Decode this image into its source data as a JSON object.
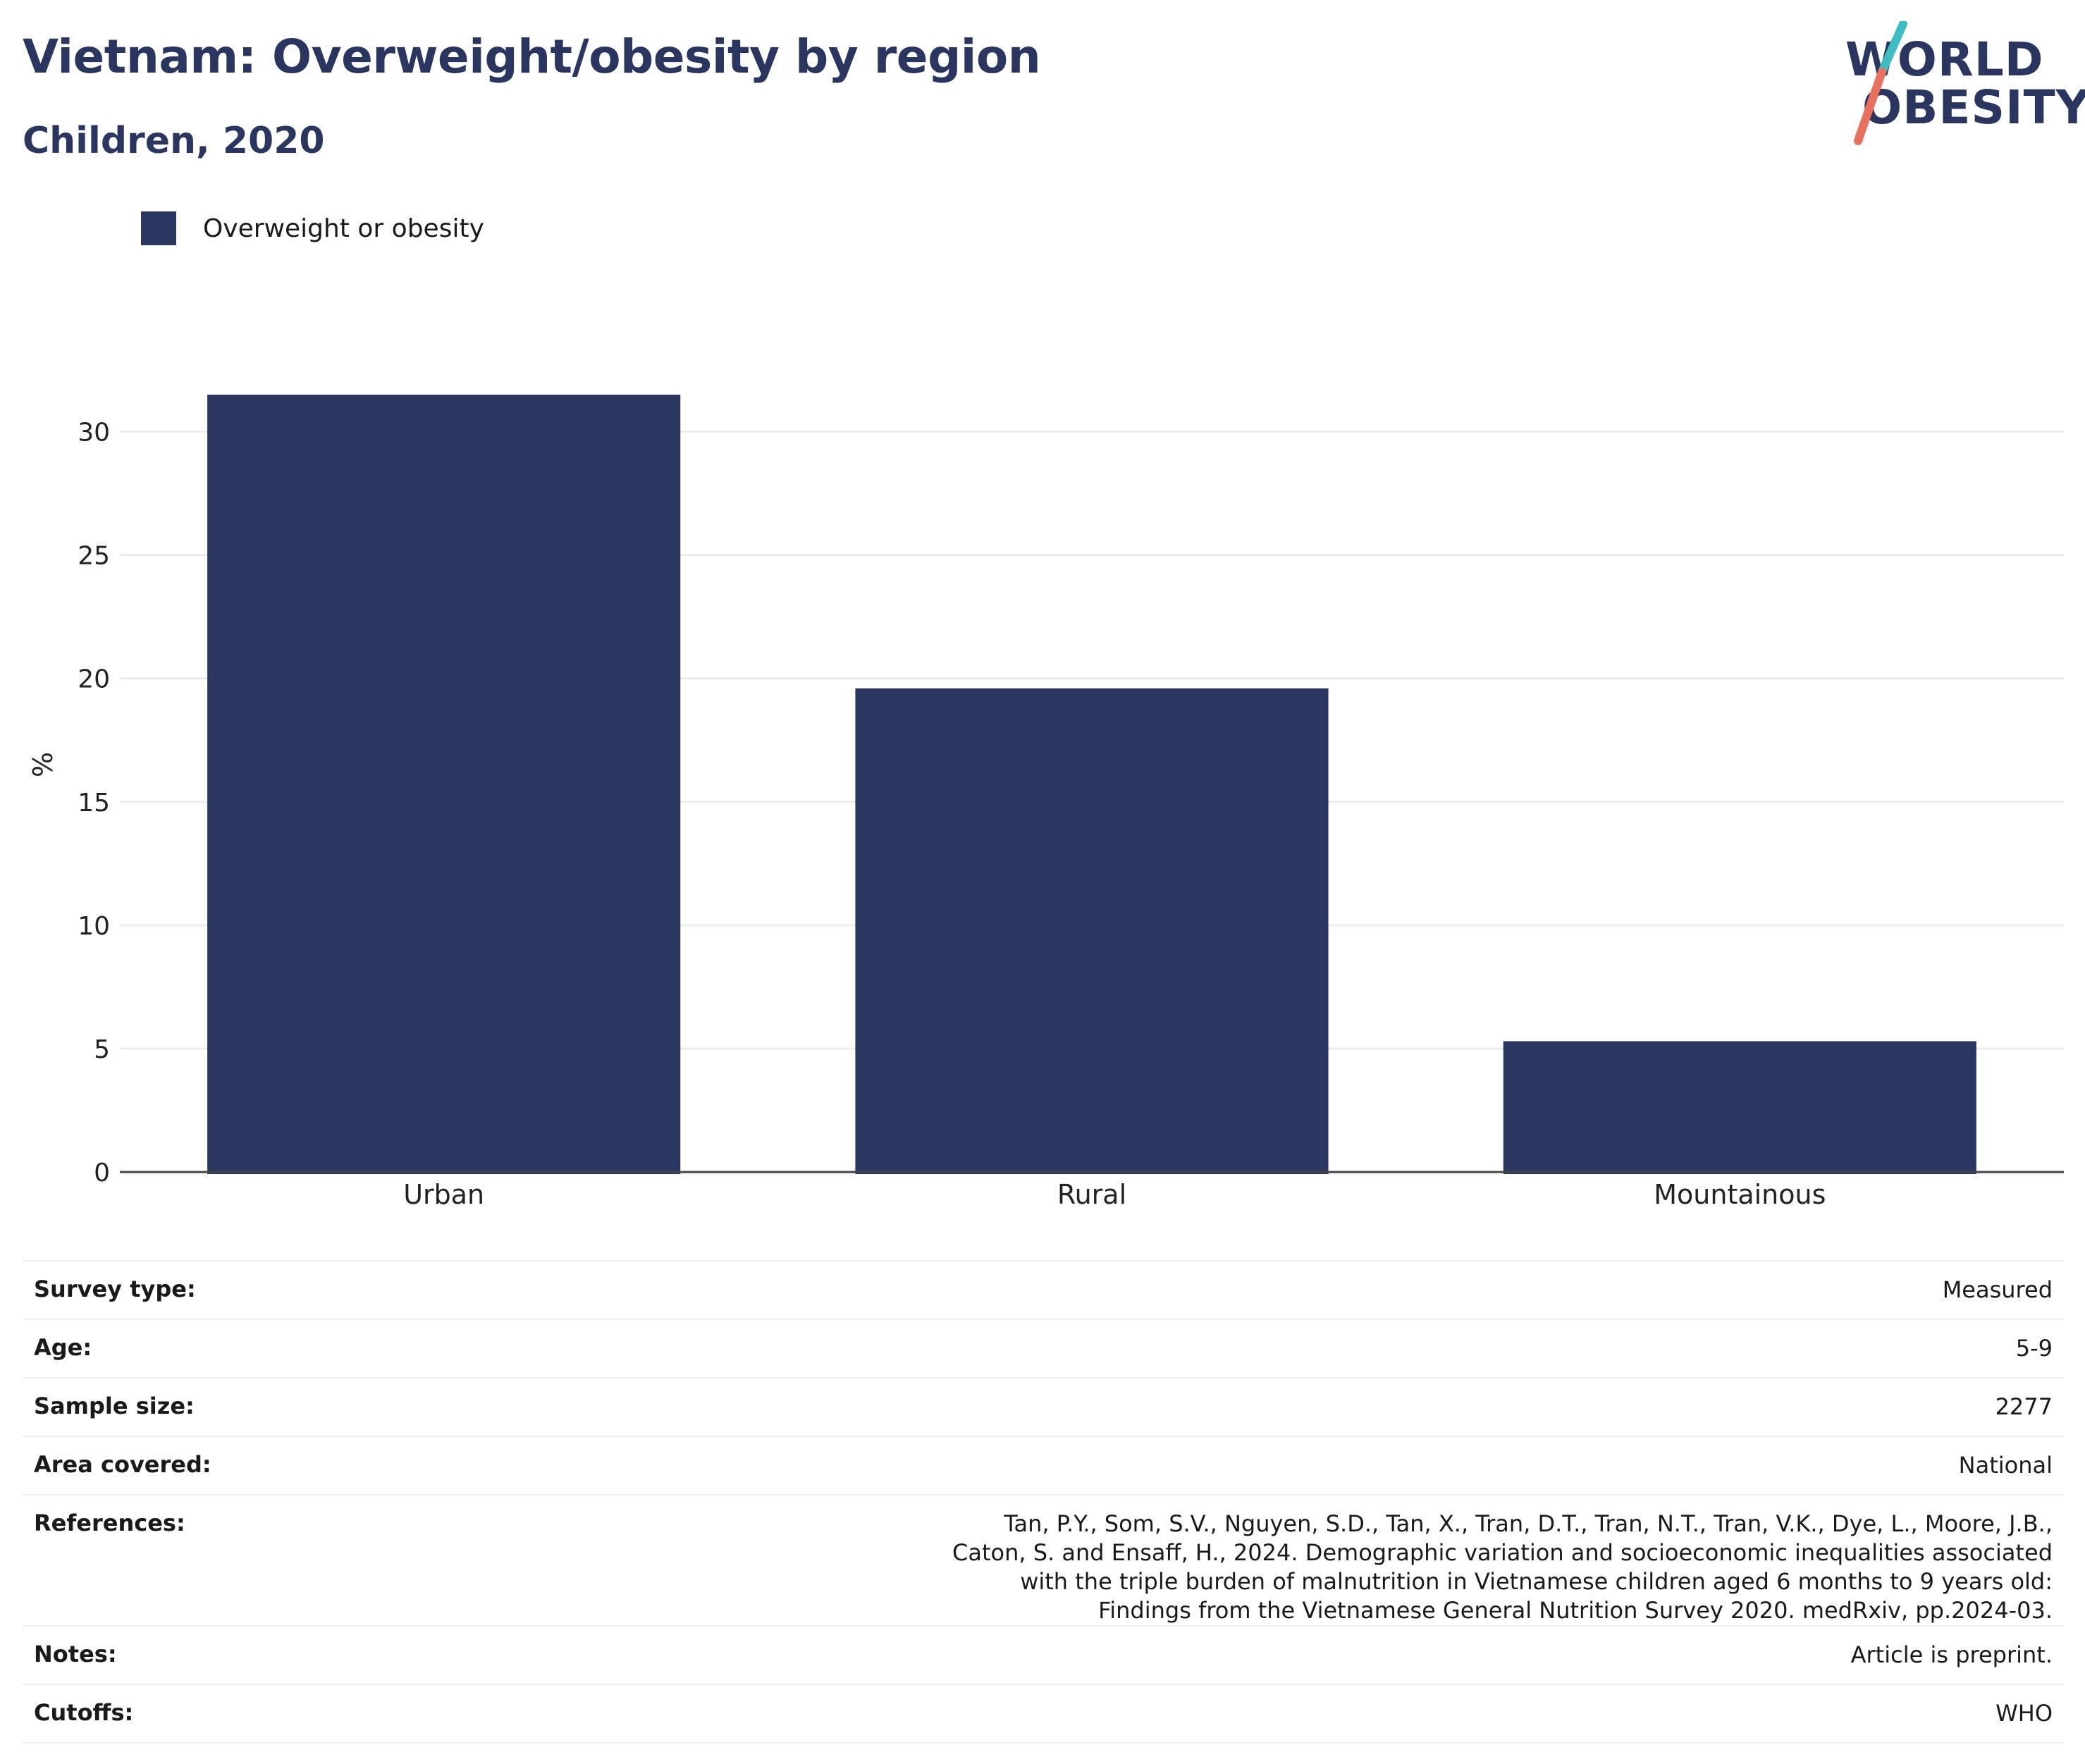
{
  "header": {
    "title": "Vietnam: Overweight/obesity by region",
    "subtitle": "Children, 2020"
  },
  "logo": {
    "line1": "WORLD",
    "line2": "OBESITY",
    "colors": {
      "text": "#2a365f",
      "slash_top": "#3dbcc2",
      "slash_bottom": "#e8705c"
    }
  },
  "chart_data": {
    "type": "bar",
    "categories": [
      "Urban",
      "Rural",
      "Mountainous"
    ],
    "series": [
      {
        "name": "Overweight or obesity",
        "values": [
          31.5,
          19.6,
          5.3
        ],
        "color": "#2a365f"
      }
    ],
    "title": "Vietnam: Overweight/obesity by region",
    "subtitle": "Children, 2020",
    "xlabel": "",
    "ylabel": "%",
    "ylim": [
      0,
      31.5
    ],
    "yticks": [
      0,
      5,
      10,
      15,
      20,
      25,
      30
    ],
    "grid": true,
    "legend_position": "top-left"
  },
  "info": [
    {
      "label": "Survey type:",
      "value": "Measured"
    },
    {
      "label": "Age:",
      "value": "5-9"
    },
    {
      "label": "Sample size:",
      "value": "2277"
    },
    {
      "label": "Area covered:",
      "value": "National"
    },
    {
      "label": "References:",
      "value": "Tan, P.Y., Som, S.V., Nguyen, S.D., Tan, X., Tran, D.T., Tran, N.T., Tran, V.K., Dye, L., Moore, J.B., Caton, S. and Ensaff, H., 2024. Demographic variation and socioeconomic inequalities associated with the triple burden of malnutrition in Vietnamese children aged 6 months to 9 years old: Findings from the Vietnamese General Nutrition Survey 2020. medRxiv, pp.2024-03."
    },
    {
      "label": "Notes:",
      "value": "Article is preprint."
    },
    {
      "label": "Cutoffs:",
      "value": "WHO"
    }
  ]
}
